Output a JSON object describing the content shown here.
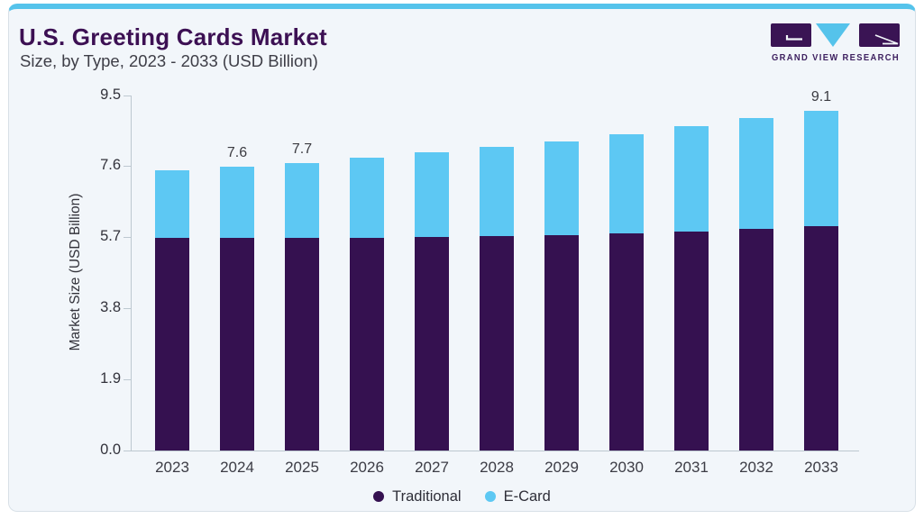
{
  "page": {
    "background": "#ffffff"
  },
  "card": {
    "background": "#f2f6fa",
    "border_color": "#d8e0e7",
    "top_bar_color": "#55c3eb"
  },
  "header": {
    "title": "U.S. Greeting Cards Market",
    "subtitle": "Size, by Type, 2023 - 2033 (USD Billion)",
    "title_color": "#3c1053",
    "subtitle_color": "#3e3e47"
  },
  "logo": {
    "text": "GRAND VIEW RESEARCH",
    "mark_purple": "#3a1454",
    "mark_blue": "#55c3eb",
    "text_color": "#3e2160"
  },
  "chart_data": {
    "type": "bar",
    "stacked": true,
    "title": "U.S. Greeting Cards Market Size, by Type, 2023 - 2033 (USD Billion)",
    "ylabel": "Market Size (USD Billion)",
    "xlabel": "",
    "ylim": [
      0,
      9.5
    ],
    "ytick_values": [
      0,
      1.9,
      3.8,
      5.7,
      7.6,
      9.5
    ],
    "ytick_labels": [
      "0.0",
      "1.9",
      "3.8",
      "5.7",
      "7.6",
      "9.5"
    ],
    "grid": false,
    "legend_position": "bottom",
    "categories": [
      "2023",
      "2024",
      "2025",
      "2026",
      "2027",
      "2028",
      "2029",
      "2030",
      "2031",
      "2032",
      "2033"
    ],
    "series": [
      {
        "name": "Traditional",
        "color": "#351150",
        "values": [
          5.7,
          5.7,
          5.7,
          5.7,
          5.72,
          5.74,
          5.77,
          5.81,
          5.87,
          5.93,
          6.0
        ]
      },
      {
        "name": "E-Card",
        "color": "#5dc8f3",
        "values": [
          1.8,
          1.9,
          2.0,
          2.14,
          2.26,
          2.38,
          2.5,
          2.66,
          2.82,
          2.97,
          3.1
        ]
      }
    ],
    "totals": [
      7.5,
      7.6,
      7.7,
      7.84,
      7.98,
      8.12,
      8.27,
      8.47,
      8.69,
      8.9,
      9.1
    ],
    "total_labels": [
      "",
      "7.6",
      "7.7",
      "",
      "",
      "",
      "",
      "",
      "",
      "",
      "9.1"
    ],
    "axis_color": "#bdc8d0",
    "tick_text_color": "#32323b",
    "bar_label_color": "#3b3b41"
  }
}
